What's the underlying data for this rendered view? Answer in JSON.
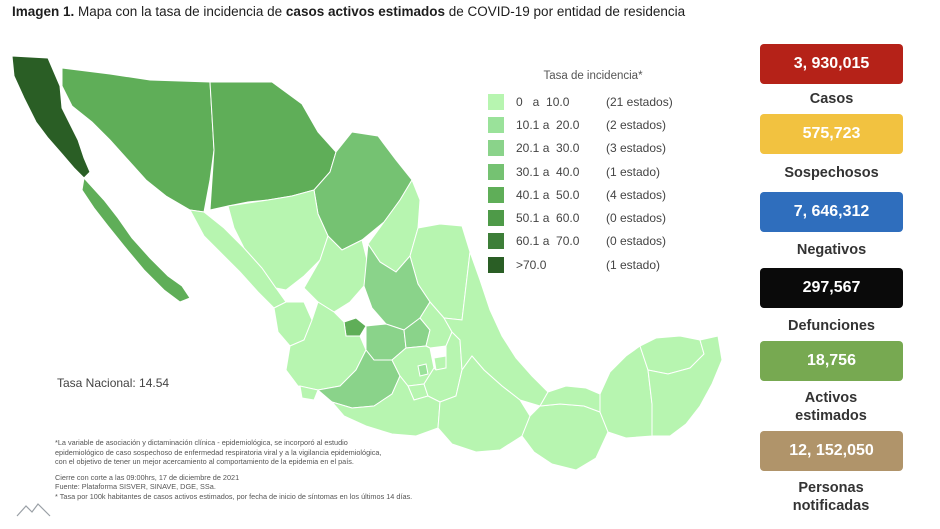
{
  "header": {
    "prefix": "Imagen 1.",
    "text1": " Mapa con la tasa de incidencia de ",
    "bold": "casos activos estimados",
    "text2": " de COVID-19 por entidad de residencia"
  },
  "legend": {
    "title": "Tasa de incidencia*",
    "items": [
      {
        "range": "0   a  10.0",
        "count": "(21 estados)",
        "color": "#b7f5b0"
      },
      {
        "range": "10.1 a  20.0",
        "count": "(2 estados)",
        "color": "#9ae29a"
      },
      {
        "range": "20.1 a  30.0",
        "count": "(3 estados)",
        "color": "#8ad38a"
      },
      {
        "range": "30.1 a  40.0",
        "count": "(1 estado)",
        "color": "#75c272"
      },
      {
        "range": "40.1 a  50.0",
        "count": "(4 estados)",
        "color": "#5fae58"
      },
      {
        "range": "50.1 a  60.0",
        "count": "(0 estados)",
        "color": "#4e9a48"
      },
      {
        "range": "60.1 a  70.0",
        "count": "(0 estados)",
        "color": "#3d7e38"
      },
      {
        "range": ">70.0",
        "count": "(1 estado)",
        "color": "#2a5e25"
      }
    ]
  },
  "tasa_nacional": "Tasa Nacional: 14.54",
  "notes": {
    "line1": "*La variable de asociación y dictaminación clínica - epidemiológica, se incorporó al estudio",
    "line2": "epidemiológico de caso sospechoso de enfermedad respiratoria viral y a la vigilancia epidemiológica,",
    "line3": "con el objetivo de tener un mejor acercamiento al comportamiento de la epidemia en el país.",
    "line4": "Cierre con corte a las 09:00hrs, 17 de diciembre de 2021",
    "line5": "Fuente: Plataforma SISVER, SINAVE, DGE, SSa.",
    "line6": "* Tasa por 100k habitantes de casos activos estimados, por fecha de inicio de síntomas en los últimos 14 días."
  },
  "stats": [
    {
      "value": "3, 930,015",
      "label": "Casos",
      "color": "#b52218"
    },
    {
      "value": "575,723",
      "label": "Sospechosos",
      "color": "#f2c240"
    },
    {
      "value": "7, 646,312",
      "label": "Negativos",
      "color": "#2f6ebd"
    },
    {
      "value": "297,567",
      "label": "Defunciones",
      "color": "#0a0a0a"
    },
    {
      "value": "18,756",
      "label": "Activos estimados",
      "color": "#77a951"
    },
    {
      "value": "12, 152,050",
      "label": "Personas notificadas",
      "color": "#b0946a"
    }
  ],
  "icons": {
    "watermark": "mountain-logo-icon"
  }
}
